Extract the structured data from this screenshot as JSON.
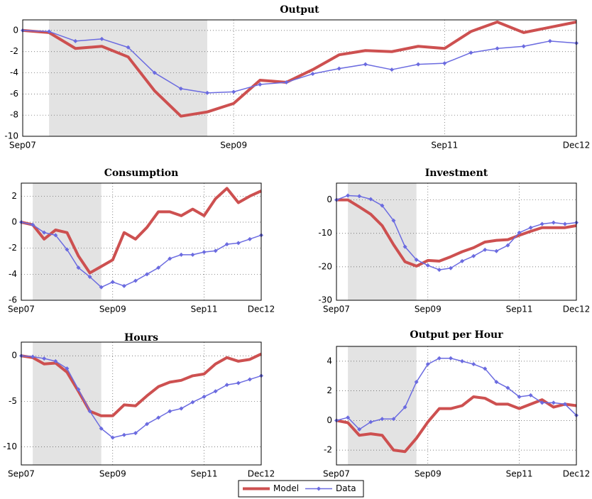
{
  "chart_data": [
    {
      "type": "line",
      "title": "Output",
      "categories": [
        "Sep07",
        null,
        null,
        null,
        null,
        null,
        null,
        null,
        "Sep09",
        null,
        null,
        null,
        null,
        null,
        null,
        null,
        "Sep11",
        null,
        null,
        null,
        null,
        "Dec12"
      ],
      "series": [
        {
          "name": "Model",
          "color": "#cd5050",
          "values": [
            0,
            -0.2,
            -1.7,
            -1.5,
            -2.5,
            -5.7,
            -8.1,
            -7.7,
            -6.9,
            -4.7,
            -4.9,
            -3.7,
            -2.3,
            -1.9,
            -2.0,
            -1.5,
            -1.7,
            -0.1,
            0.8,
            -0.2,
            0.3,
            0.8
          ]
        },
        {
          "name": "Data",
          "color": "#6b6be0",
          "values": [
            0,
            -0.1,
            -1.0,
            -0.8,
            -1.6,
            -4.0,
            -5.5,
            -5.9,
            -5.8,
            -5.1,
            -4.9,
            -4.1,
            -3.6,
            -3.2,
            -3.7,
            -3.2,
            -3.1,
            -2.1,
            -1.7,
            -1.5,
            -1.0,
            -1.2
          ]
        }
      ],
      "ylim": [
        -10,
        1
      ],
      "yticks": [
        -10,
        -8,
        -6,
        -4,
        -2,
        0
      ],
      "grid": true,
      "shade": [
        1,
        7
      ]
    },
    {
      "type": "line",
      "title": "Consumption",
      "categories": [
        "Sep07",
        null,
        null,
        null,
        null,
        null,
        null,
        null,
        "Sep09",
        null,
        null,
        null,
        null,
        null,
        null,
        null,
        "Sep11",
        null,
        null,
        null,
        null,
        "Dec12"
      ],
      "series": [
        {
          "name": "Model",
          "color": "#cd5050",
          "values": [
            0,
            -0.2,
            -1.3,
            -0.6,
            -0.8,
            -2.6,
            -3.9,
            -3.4,
            -2.9,
            -0.8,
            -1.3,
            -0.4,
            0.8,
            0.8,
            0.5,
            1.0,
            0.5,
            1.8,
            2.6,
            1.5,
            2.0,
            2.4
          ]
        },
        {
          "name": "Data",
          "color": "#6b6be0",
          "values": [
            0,
            -0.2,
            -0.8,
            -1.0,
            -2.1,
            -3.5,
            -4.2,
            -5.0,
            -4.6,
            -4.9,
            -4.5,
            -4.0,
            -3.5,
            -2.8,
            -2.5,
            -2.5,
            -2.3,
            -2.2,
            -1.7,
            -1.6,
            -1.3,
            -1.0
          ]
        }
      ],
      "ylim": [
        -6,
        3
      ],
      "yticks": [
        -6,
        -4,
        -2,
        0,
        2
      ],
      "grid": true,
      "shade": [
        1,
        7
      ]
    },
    {
      "type": "line",
      "title": "Investment",
      "categories": [
        "Sep07",
        null,
        null,
        null,
        null,
        null,
        null,
        null,
        "Sep09",
        null,
        null,
        null,
        null,
        null,
        null,
        null,
        "Sep11",
        null,
        null,
        null,
        null,
        "Dec12"
      ],
      "series": [
        {
          "name": "Model",
          "color": "#cd5050",
          "values": [
            0,
            0,
            -2.1,
            -4.3,
            -7.7,
            -13.4,
            -18.5,
            -19.8,
            -18.1,
            -18.3,
            -17.0,
            -15.5,
            -14.3,
            -12.6,
            -12.1,
            -11.9,
            -10.6,
            -9.4,
            -8.3,
            -8.3,
            -8.3,
            -7.7
          ]
        },
        {
          "name": "Data",
          "color": "#6b6be0",
          "values": [
            0,
            1.3,
            1.1,
            0.2,
            -1.7,
            -6.2,
            -14.0,
            -17.9,
            -19.6,
            -20.9,
            -20.4,
            -18.3,
            -16.8,
            -14.9,
            -15.3,
            -13.6,
            -9.8,
            -8.3,
            -7.2,
            -6.8,
            -7.2,
            -6.8
          ]
        }
      ],
      "ylim": [
        -30,
        5
      ],
      "yticks": [
        -30,
        -20,
        -10,
        0
      ],
      "grid": true,
      "shade": [
        1,
        7
      ]
    },
    {
      "type": "line",
      "title": "Hours",
      "categories": [
        "Sep07",
        null,
        null,
        null,
        null,
        null,
        null,
        null,
        "Sep09",
        null,
        null,
        null,
        null,
        null,
        null,
        null,
        "Sep11",
        null,
        null,
        null,
        null,
        "Dec12"
      ],
      "series": [
        {
          "name": "Model",
          "color": "#cd5050",
          "values": [
            0,
            -0.2,
            -0.9,
            -0.8,
            -1.8,
            -3.9,
            -6.1,
            -6.6,
            -6.6,
            -5.4,
            -5.5,
            -4.4,
            -3.4,
            -2.9,
            -2.7,
            -2.2,
            -2.0,
            -0.9,
            -0.2,
            -0.6,
            -0.4,
            0.2
          ]
        },
        {
          "name": "Data",
          "color": "#6b6be0",
          "values": [
            0,
            -0.1,
            -0.3,
            -0.6,
            -1.4,
            -3.7,
            -6.1,
            -8.0,
            -9.0,
            -8.7,
            -8.5,
            -7.5,
            -6.8,
            -6.1,
            -5.8,
            -5.1,
            -4.5,
            -3.9,
            -3.2,
            -3.0,
            -2.6,
            -2.2
          ]
        }
      ],
      "ylim": [
        -12,
        1.5
      ],
      "yticks": [
        -10,
        -5,
        0
      ],
      "grid": true,
      "shade": [
        1,
        7
      ]
    },
    {
      "type": "line",
      "title": "Output per Hour",
      "categories": [
        "Sep07",
        null,
        null,
        null,
        null,
        null,
        null,
        null,
        "Sep09",
        null,
        null,
        null,
        null,
        null,
        null,
        null,
        "Sep11",
        null,
        null,
        null,
        null,
        "Dec12"
      ],
      "series": [
        {
          "name": "Model",
          "color": "#cd5050",
          "values": [
            0,
            -0.15,
            -1.0,
            -0.9,
            -1.0,
            -2.0,
            -2.1,
            -1.2,
            -0.1,
            0.8,
            0.8,
            1.0,
            1.6,
            1.5,
            1.1,
            1.1,
            0.8,
            1.1,
            1.4,
            0.9,
            1.1,
            1.0
          ]
        },
        {
          "name": "Data",
          "color": "#6b6be0",
          "values": [
            0,
            0.2,
            -0.6,
            -0.1,
            0.1,
            0.1,
            0.9,
            2.6,
            3.8,
            4.2,
            4.2,
            4.0,
            3.8,
            3.5,
            2.6,
            2.2,
            1.6,
            1.7,
            1.2,
            1.2,
            1.1,
            0.35
          ]
        }
      ],
      "ylim": [
        -3,
        5
      ],
      "yticks": [
        -2,
        0,
        2,
        4
      ],
      "grid": true,
      "shade": [
        1,
        7
      ]
    }
  ]
}
